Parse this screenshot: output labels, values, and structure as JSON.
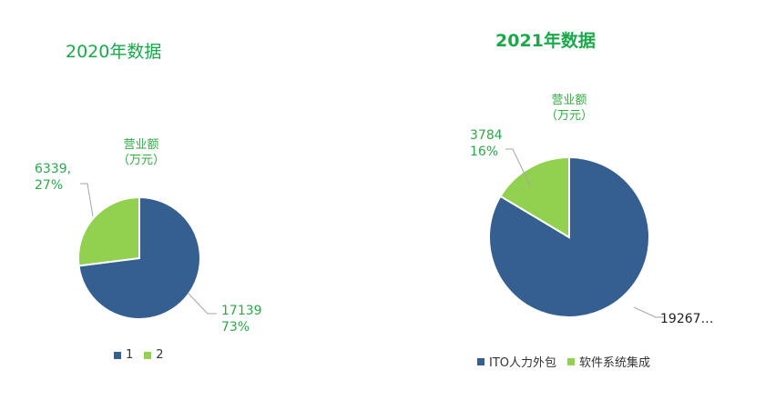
{
  "chart_data": [
    {
      "type": "pie",
      "title": "2020年数据",
      "series_name": "营业额\n（万元）",
      "categories": [
        "1",
        "2"
      ],
      "values": [
        17139,
        6339
      ],
      "labels": [
        "17139\n73%",
        "6339,\n27%"
      ],
      "colors": [
        "#355f91",
        "#92d050"
      ],
      "legend": "bottom"
    },
    {
      "type": "pie",
      "title": "2021年数据",
      "series_name": "营业额\n（万元）",
      "categories": [
        "ITO人力外包",
        "软件系统集成"
      ],
      "values": [
        19267,
        3784
      ],
      "labels": [
        "19267…",
        "3784\n16%"
      ],
      "colors": [
        "#355f91",
        "#92d050"
      ],
      "legend": "bottom"
    }
  ]
}
